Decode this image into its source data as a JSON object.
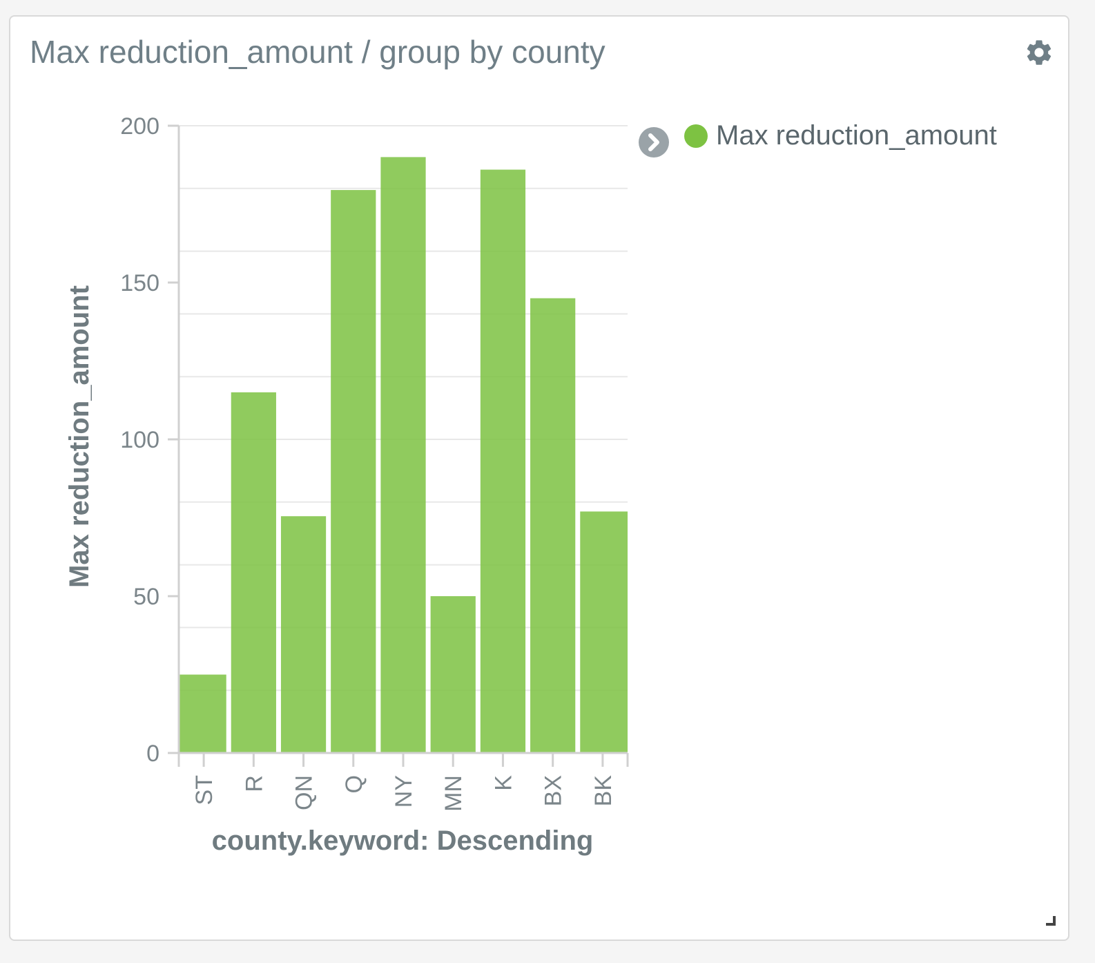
{
  "panel": {
    "title": "Max reduction_amount / group by county",
    "settings_icon": "gear-icon",
    "legend_toggle_icon": "chevron-right-icon",
    "resize_icon": "resize-handle-icon"
  },
  "legend": {
    "items": [
      {
        "label": "Max reduction_amount",
        "color": "#7dc242"
      }
    ]
  },
  "chart_data": {
    "type": "bar",
    "title": "",
    "xlabel": "county.keyword: Descending",
    "ylabel": "Max reduction_amount",
    "categories": [
      "ST",
      "R",
      "QN",
      "Q",
      "NY",
      "MN",
      "K",
      "BX",
      "BK"
    ],
    "series": [
      {
        "name": "Max reduction_amount",
        "color": "#7dc242",
        "values": [
          25,
          115,
          75.5,
          179.5,
          190,
          50,
          186,
          145,
          77
        ]
      }
    ],
    "ylim": [
      0,
      200
    ],
    "yticks": [
      0,
      50,
      100,
      150,
      200
    ],
    "grid": true,
    "legend_position": "right"
  }
}
